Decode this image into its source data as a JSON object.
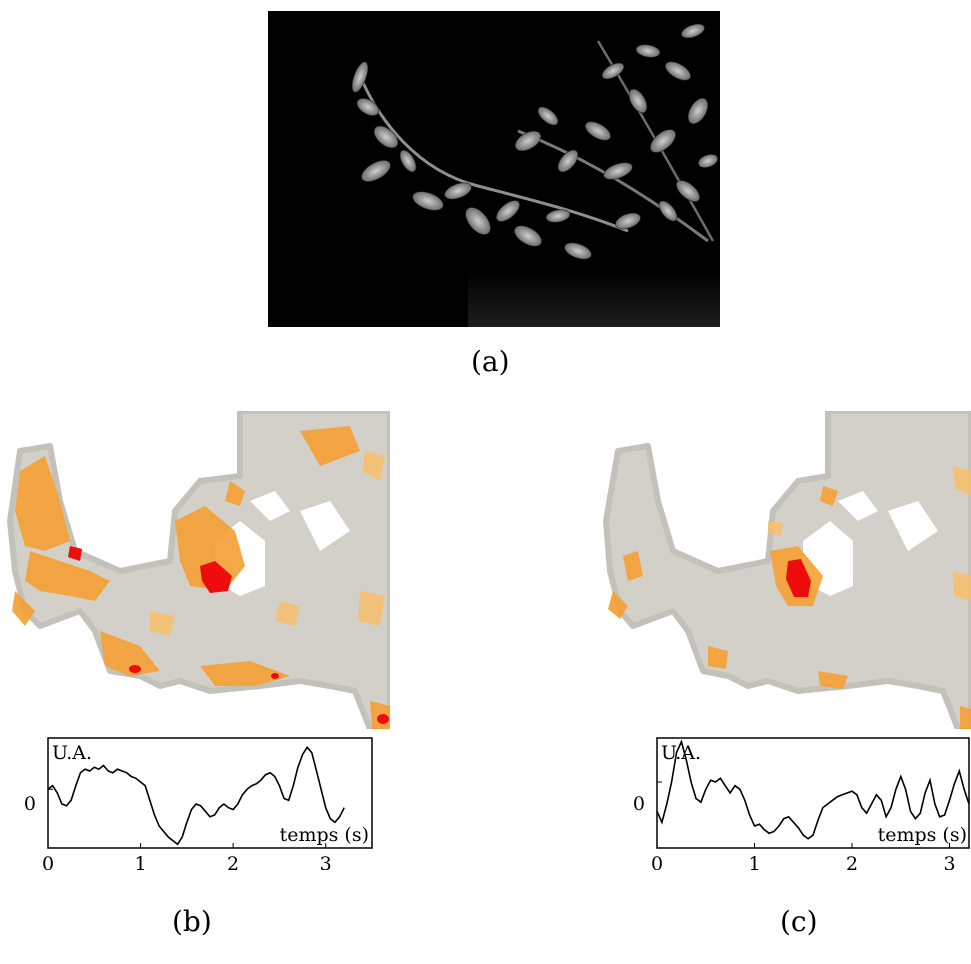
{
  "figure": {
    "panel_a": {
      "caption": "(a)"
    },
    "panel_b": {
      "caption": "(b)"
    },
    "panel_c": {
      "caption": "(c)"
    }
  },
  "colors": {
    "mask": "#d3d0ca",
    "mask_edge": "#c4c1bb",
    "orange": "#f5a033",
    "light_orange": "#f8bf6b",
    "red": "#ee0d0d",
    "photo_bg": "#000000"
  },
  "chart_data": [
    {
      "type": "line",
      "title": "",
      "ylabel": "U.A.",
      "xlabel": "temps (s)",
      "xticks": [
        "0",
        "1",
        "2",
        "3"
      ],
      "yticks": [
        "0"
      ],
      "xlim": [
        0,
        3.5
      ],
      "ylim": [
        -1.6,
        1.4
      ],
      "series": [
        {
          "x": [
            0.0,
            0.05,
            0.1,
            0.15,
            0.2,
            0.25,
            0.3,
            0.35,
            0.4,
            0.45,
            0.5,
            0.55,
            0.6,
            0.65,
            0.7,
            0.75,
            0.8,
            0.85,
            0.9,
            0.95,
            1.0,
            1.05,
            1.1,
            1.15,
            1.2,
            1.25,
            1.3,
            1.35,
            1.4,
            1.45,
            1.5,
            1.55,
            1.6,
            1.65,
            1.7,
            1.75,
            1.8,
            1.85,
            1.9,
            1.95,
            2.0,
            2.05,
            2.1,
            2.15,
            2.2,
            2.25,
            2.3,
            2.35,
            2.4,
            2.45,
            2.5,
            2.55,
            2.6,
            2.65,
            2.7,
            2.75,
            2.8,
            2.85,
            2.9,
            2.95,
            3.0,
            3.05,
            3.1,
            3.15,
            3.2
          ],
          "y": [
            0.0,
            0.1,
            -0.1,
            -0.4,
            -0.45,
            -0.3,
            0.1,
            0.45,
            0.55,
            0.5,
            0.6,
            0.55,
            0.65,
            0.5,
            0.45,
            0.55,
            0.5,
            0.45,
            0.35,
            0.3,
            0.2,
            0.1,
            -0.3,
            -0.7,
            -1.0,
            -1.15,
            -1.3,
            -1.4,
            -1.5,
            -1.3,
            -0.9,
            -0.55,
            -0.4,
            -0.45,
            -0.6,
            -0.75,
            -0.7,
            -0.5,
            -0.4,
            -0.5,
            -0.55,
            -0.4,
            -0.15,
            0.0,
            0.1,
            0.15,
            0.25,
            0.4,
            0.45,
            0.35,
            0.1,
            -0.25,
            -0.3,
            0.1,
            0.6,
            0.95,
            1.15,
            1.0,
            0.5,
            0.0,
            -0.5,
            -0.8,
            -0.9,
            -0.75,
            -0.5
          ]
        }
      ]
    },
    {
      "type": "line",
      "title": "",
      "ylabel": "U.A.",
      "xlabel": "temps (s)",
      "xticks": [
        "0",
        "1",
        "2",
        "3"
      ],
      "yticks": [
        "0"
      ],
      "xlim": [
        0,
        3.2
      ],
      "ylim": [
        -1.8,
        1.2
      ],
      "series": [
        {
          "x": [
            0.0,
            0.05,
            0.1,
            0.15,
            0.2,
            0.25,
            0.3,
            0.35,
            0.4,
            0.45,
            0.5,
            0.55,
            0.6,
            0.65,
            0.7,
            0.75,
            0.8,
            0.85,
            0.9,
            0.95,
            1.0,
            1.05,
            1.1,
            1.15,
            1.2,
            1.25,
            1.3,
            1.35,
            1.4,
            1.45,
            1.5,
            1.55,
            1.6,
            1.65,
            1.7,
            1.75,
            1.8,
            1.85,
            1.9,
            1.95,
            2.0,
            2.05,
            2.1,
            2.15,
            2.2,
            2.25,
            2.3,
            2.35,
            2.4,
            2.45,
            2.5,
            2.55,
            2.6,
            2.65,
            2.7,
            2.75,
            2.8,
            2.85,
            2.9,
            2.95,
            3.0,
            3.05,
            3.1,
            3.15,
            3.2
          ],
          "y": [
            -0.8,
            -1.1,
            -0.6,
            0.0,
            0.8,
            1.1,
            0.6,
            0.0,
            -0.45,
            -0.55,
            -0.2,
            0.05,
            0.0,
            0.1,
            -0.1,
            -0.3,
            -0.1,
            -0.2,
            -0.5,
            -0.9,
            -1.2,
            -1.15,
            -1.3,
            -1.4,
            -1.35,
            -1.2,
            -1.0,
            -0.95,
            -1.1,
            -1.25,
            -1.45,
            -1.55,
            -1.45,
            -1.05,
            -0.7,
            -0.6,
            -0.5,
            -0.4,
            -0.35,
            -0.3,
            -0.25,
            -0.35,
            -0.7,
            -0.85,
            -0.6,
            -0.35,
            -0.5,
            -0.95,
            -0.7,
            -0.2,
            0.15,
            -0.2,
            -0.8,
            -1.0,
            -0.85,
            -0.3,
            0.05,
            -0.6,
            -0.95,
            -0.9,
            -0.5,
            -0.05,
            0.3,
            -0.2,
            -0.6
          ]
        }
      ]
    }
  ]
}
